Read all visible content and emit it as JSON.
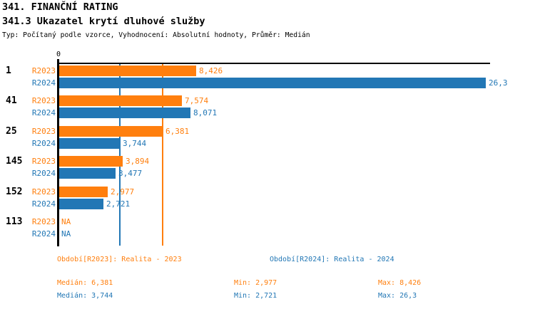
{
  "header": {
    "title": "341. FINANČNÍ RATING",
    "subtitle": "341.3 Ukazatel krytí dluhové služby",
    "meta": "Typ: Počítaný podle vzorce, Vyhodnocení: Absolutní hodnoty, Průměr: Medián"
  },
  "colors": {
    "r2023": "#FF7F0E",
    "r2024": "#2277B5",
    "axis": "#000000"
  },
  "chart_data": {
    "type": "bar",
    "orientation": "horizontal",
    "title": "341.3 Ukazatel krytí dluhové služby",
    "xlabel": "",
    "ylabel": "",
    "xlim": [
      0,
      26.5
    ],
    "axis_zero_label": "0",
    "grid": "median-lines-only",
    "legend_position": "bottom-text",
    "series_labels": {
      "r2023": "R2023",
      "r2024": "R2024"
    },
    "categories": [
      "1",
      "41",
      "25",
      "145",
      "152",
      "113"
    ],
    "groups": [
      {
        "label": "1",
        "r2023": 8.426,
        "r2023_display": "8,426",
        "r2024": 26.3,
        "r2024_display": "26,3"
      },
      {
        "label": "41",
        "r2023": 7.574,
        "r2023_display": "7,574",
        "r2024": 8.071,
        "r2024_display": "8,071"
      },
      {
        "label": "25",
        "r2023": 6.381,
        "r2023_display": "6,381",
        "r2024": 3.744,
        "r2024_display": "3,744"
      },
      {
        "label": "145",
        "r2023": 3.894,
        "r2023_display": "3,894",
        "r2024": 3.477,
        "r2024_display": "3,477"
      },
      {
        "label": "152",
        "r2023": 2.977,
        "r2023_display": "2,977",
        "r2024": 2.721,
        "r2024_display": "2,721"
      },
      {
        "label": "113",
        "r2023": null,
        "r2023_display": "NA",
        "r2024": null,
        "r2024_display": "NA"
      }
    ],
    "median_lines": [
      {
        "series": "r2024",
        "value": 3.744
      },
      {
        "series": "r2023",
        "value": 6.381
      }
    ],
    "stats": {
      "r2023": {
        "median": 6.381,
        "min": 2.977,
        "max": 8.426
      },
      "r2024": {
        "median": 3.744,
        "min": 2.721,
        "max": 26.3
      }
    }
  },
  "footer": {
    "period_r2023": "Období[R2023]: Realita - 2023",
    "period_r2024": "Období[R2024]: Realita - 2024",
    "stats_r2023": {
      "median": "Medián: 6,381",
      "min": "Min: 2,977",
      "max": "Max: 8,426"
    },
    "stats_r2024": {
      "median": "Medián: 3,744",
      "min": "Min: 2,721",
      "max": "Max: 26,3"
    }
  }
}
